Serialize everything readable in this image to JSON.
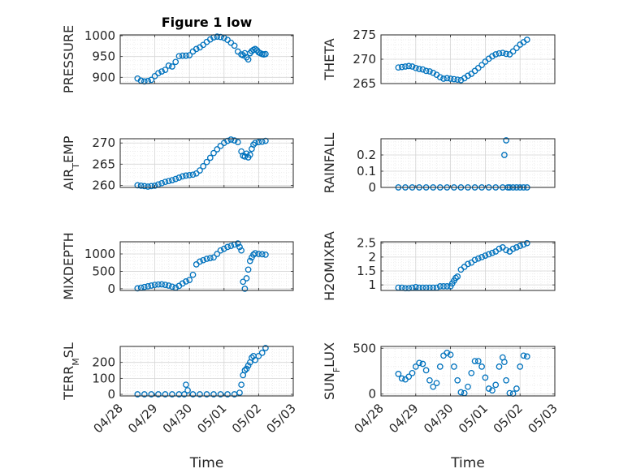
{
  "figure": {
    "title": "Figure 1 low",
    "marker_color": "#0072BD"
  },
  "chart_data": [
    {
      "type": "scatter",
      "title": "Figure 1 low",
      "ylabel": "PRESSURE",
      "xlabel": "",
      "ylim": [
        885,
        1002
      ],
      "yticks": [
        900,
        950,
        1000
      ],
      "ytick_labels": [
        "900",
        "950",
        "1000"
      ],
      "xlim": [
        "04/28",
        "05/03"
      ],
      "grid": true,
      "series": [
        {
          "x": [
            0.5,
            0.6,
            0.7,
            0.8,
            0.9,
            1.0,
            1.1,
            1.2,
            1.3,
            1.4,
            1.5,
            1.6,
            1.7,
            1.8,
            1.9,
            2.0,
            2.1,
            2.2,
            2.3,
            2.4,
            2.5,
            2.6,
            2.7,
            2.8,
            2.9,
            3.0,
            3.1,
            3.2,
            3.3,
            3.4,
            3.5,
            3.55,
            3.6,
            3.65,
            3.7,
            3.75,
            3.8,
            3.85,
            3.9,
            3.95,
            4.0,
            4.05,
            4.1,
            4.15,
            4.2
          ],
          "y": [
            897,
            892,
            890,
            891,
            894,
            903,
            910,
            914,
            918,
            928,
            926,
            937,
            951,
            952,
            952,
            953,
            962,
            968,
            972,
            978,
            985,
            991,
            996,
            998,
            997,
            995,
            990,
            983,
            976,
            962,
            955,
            953,
            958,
            948,
            943,
            958,
            963,
            966,
            968,
            965,
            960,
            958,
            956,
            955,
            956
          ]
        }
      ]
    },
    {
      "type": "scatter",
      "title": "",
      "ylabel": "THETA",
      "xlabel": "",
      "ylim": [
        265,
        275
      ],
      "yticks": [
        265,
        270,
        275
      ],
      "ytick_labels": [
        "265",
        "270",
        "275"
      ],
      "xlim": [
        "04/28",
        "05/03"
      ],
      "grid": true,
      "series": [
        {
          "x": [
            0.5,
            0.6,
            0.7,
            0.8,
            0.9,
            1.0,
            1.1,
            1.2,
            1.3,
            1.4,
            1.5,
            1.6,
            1.7,
            1.8,
            1.9,
            2.0,
            2.1,
            2.2,
            2.3,
            2.4,
            2.5,
            2.6,
            2.7,
            2.8,
            2.9,
            3.0,
            3.1,
            3.2,
            3.3,
            3.4,
            3.5,
            3.6,
            3.7,
            3.8,
            3.9,
            4.0,
            4.1,
            4.2
          ],
          "y": [
            268.3,
            268.4,
            268.5,
            268.6,
            268.5,
            268.2,
            268.0,
            267.9,
            267.6,
            267.5,
            267.2,
            266.8,
            266.3,
            266.0,
            266.1,
            266.0,
            265.9,
            265.8,
            265.7,
            266.1,
            266.6,
            267.0,
            267.6,
            268.2,
            268.8,
            269.5,
            270.1,
            270.6,
            271.0,
            271.2,
            271.3,
            271.1,
            271.0,
            271.6,
            272.3,
            273.0,
            273.5,
            274.0
          ]
        }
      ]
    },
    {
      "type": "scatter",
      "title": "",
      "ylabel": "AIR_TEMP",
      "ylabel_main": "AIR",
      "ylabel_sub": "T",
      "ylabel_rest": "EMP",
      "xlabel": "",
      "ylim": [
        259.5,
        271
      ],
      "yticks": [
        260,
        265,
        270
      ],
      "ytick_labels": [
        "260",
        "265",
        "270"
      ],
      "xlim": [
        "04/28",
        "05/03"
      ],
      "grid": true,
      "series": [
        {
          "x": [
            0.5,
            0.6,
            0.7,
            0.8,
            0.9,
            1.0,
            1.1,
            1.2,
            1.3,
            1.4,
            1.5,
            1.6,
            1.7,
            1.8,
            1.9,
            2.0,
            2.1,
            2.2,
            2.3,
            2.4,
            2.5,
            2.6,
            2.7,
            2.8,
            2.9,
            3.0,
            3.1,
            3.2,
            3.3,
            3.4,
            3.5,
            3.55,
            3.6,
            3.65,
            3.7,
            3.75,
            3.8,
            3.85,
            3.9,
            4.0,
            4.1,
            4.2
          ],
          "y": [
            260.0,
            259.9,
            259.8,
            259.7,
            259.8,
            259.9,
            260.2,
            260.5,
            260.8,
            261.0,
            261.2,
            261.5,
            261.8,
            262.1,
            262.3,
            262.4,
            262.5,
            262.8,
            263.5,
            264.5,
            265.5,
            266.5,
            267.6,
            268.5,
            269.3,
            270.0,
            270.5,
            270.8,
            270.6,
            270.2,
            268.0,
            267.0,
            266.8,
            267.5,
            266.6,
            267.2,
            268.6,
            269.6,
            270.0,
            270.2,
            270.3,
            270.5
          ]
        }
      ]
    },
    {
      "type": "scatter",
      "title": "",
      "ylabel": "RAINFALL",
      "xlabel": "",
      "ylim": [
        0,
        0.3
      ],
      "yticks": [
        0,
        0.1,
        0.2
      ],
      "ytick_labels": [
        "0",
        "0.1",
        "0.2"
      ],
      "xlim": [
        "04/28",
        "05/03"
      ],
      "grid": true,
      "series": [
        {
          "x": [
            0.5,
            0.7,
            0.9,
            1.1,
            1.3,
            1.5,
            1.7,
            1.9,
            2.1,
            2.3,
            2.5,
            2.7,
            2.9,
            3.1,
            3.3,
            3.5,
            3.55,
            3.6,
            3.65,
            3.7,
            3.8,
            3.9,
            4.0,
            4.1,
            4.2
          ],
          "y": [
            0,
            0,
            0,
            0,
            0,
            0,
            0,
            0,
            0,
            0,
            0,
            0,
            0,
            0,
            0,
            0,
            0.2,
            0.29,
            0.0,
            0,
            0,
            0,
            0,
            0,
            0
          ]
        }
      ]
    },
    {
      "type": "scatter",
      "title": "",
      "ylabel": "MIXDEPTH",
      "xlabel": "",
      "ylim": [
        -50,
        1350
      ],
      "yticks": [
        0,
        500,
        1000
      ],
      "ytick_labels": [
        "0",
        "500",
        "1000"
      ],
      "xlim": [
        "04/28",
        "05/03"
      ],
      "grid": true,
      "series": [
        {
          "x": [
            0.5,
            0.6,
            0.7,
            0.8,
            0.9,
            1.0,
            1.1,
            1.2,
            1.3,
            1.4,
            1.5,
            1.6,
            1.7,
            1.8,
            1.9,
            2.0,
            2.1,
            2.2,
            2.3,
            2.4,
            2.5,
            2.6,
            2.7,
            2.8,
            2.9,
            3.0,
            3.1,
            3.2,
            3.3,
            3.4,
            3.45,
            3.5,
            3.55,
            3.6,
            3.65,
            3.7,
            3.75,
            3.8,
            3.85,
            3.9,
            4.0,
            4.1,
            4.2
          ],
          "y": [
            10,
            30,
            50,
            70,
            90,
            110,
            120,
            125,
            110,
            90,
            60,
            30,
            80,
            150,
            210,
            250,
            400,
            700,
            780,
            820,
            860,
            880,
            900,
            1000,
            1100,
            1150,
            1200,
            1230,
            1270,
            1300,
            1200,
            1100,
            200,
            0,
            300,
            550,
            800,
            900,
            980,
            1020,
            1000,
            990,
            980
          ]
        }
      ]
    },
    {
      "type": "scatter",
      "title": "",
      "ylabel": "H2OMIXRA",
      "xlabel": "",
      "ylim": [
        0.8,
        2.55
      ],
      "yticks": [
        1,
        1.5,
        2,
        2.5
      ],
      "ytick_labels": [
        "1",
        "1.5",
        "2",
        "2.5"
      ],
      "xlim": [
        "04/28",
        "05/03"
      ],
      "grid": true,
      "series": [
        {
          "x": [
            0.5,
            0.6,
            0.7,
            0.8,
            0.9,
            1.0,
            1.1,
            1.2,
            1.3,
            1.4,
            1.5,
            1.6,
            1.7,
            1.8,
            1.9,
            2.0,
            2.05,
            2.1,
            2.15,
            2.2,
            2.3,
            2.4,
            2.5,
            2.6,
            2.7,
            2.8,
            2.9,
            3.0,
            3.1,
            3.2,
            3.3,
            3.4,
            3.5,
            3.6,
            3.7,
            3.8,
            3.9,
            4.0,
            4.1,
            4.2
          ],
          "y": [
            0.9,
            0.9,
            0.88,
            0.88,
            0.9,
            0.92,
            0.9,
            0.9,
            0.9,
            0.9,
            0.9,
            0.9,
            0.95,
            0.95,
            0.95,
            0.95,
            1.05,
            1.15,
            1.25,
            1.3,
            1.55,
            1.65,
            1.75,
            1.8,
            1.9,
            1.95,
            2.0,
            2.05,
            2.1,
            2.15,
            2.2,
            2.3,
            2.35,
            2.25,
            2.2,
            2.3,
            2.35,
            2.4,
            2.45,
            2.5
          ]
        }
      ]
    },
    {
      "type": "scatter",
      "title": "",
      "ylabel": "TERR_MSL",
      "ylabel_main": "TERR",
      "ylabel_sub": "M",
      "ylabel_rest": "SL",
      "xlabel": "Time",
      "ylim": [
        -10,
        300
      ],
      "yticks": [
        0,
        100,
        200
      ],
      "ytick_labels": [
        "0",
        "100",
        "200"
      ],
      "xlim": [
        "04/28",
        "05/03"
      ],
      "xtick_labels": [
        "04/28",
        "04/29",
        "04/30",
        "05/01",
        "05/02",
        "05/03"
      ],
      "grid": true,
      "series": [
        {
          "x": [
            0.5,
            0.7,
            0.9,
            1.1,
            1.3,
            1.5,
            1.7,
            1.85,
            1.9,
            1.95,
            2.1,
            2.3,
            2.5,
            2.7,
            2.9,
            3.1,
            3.3,
            3.45,
            3.5,
            3.55,
            3.6,
            3.65,
            3.7,
            3.75,
            3.8,
            3.85,
            3.9,
            4.0,
            4.1,
            4.2
          ],
          "y": [
            0,
            0,
            0,
            0,
            0,
            0,
            0,
            0,
            60,
            25,
            0,
            0,
            0,
            0,
            0,
            0,
            0,
            10,
            60,
            120,
            150,
            160,
            180,
            200,
            230,
            240,
            215,
            240,
            260,
            290
          ]
        }
      ]
    },
    {
      "type": "scatter",
      "title": "",
      "ylabel": "SUN_FLUX",
      "ylabel_main": "SUN",
      "ylabel_sub": "F",
      "ylabel_rest": "LUX",
      "xlabel": "Time",
      "ylim": [
        -20,
        520
      ],
      "yticks": [
        0,
        500
      ],
      "ytick_labels": [
        "0",
        "500"
      ],
      "xlim": [
        "04/28",
        "05/03"
      ],
      "xtick_labels": [
        "04/28",
        "04/29",
        "04/30",
        "05/01",
        "05/02",
        "05/03"
      ],
      "grid": true,
      "series": [
        {
          "x": [
            0.5,
            0.6,
            0.7,
            0.8,
            0.9,
            1.0,
            1.1,
            1.2,
            1.3,
            1.4,
            1.5,
            1.6,
            1.7,
            1.8,
            1.9,
            2.0,
            2.1,
            2.2,
            2.3,
            2.4,
            2.5,
            2.6,
            2.7,
            2.8,
            2.9,
            3.0,
            3.1,
            3.2,
            3.3,
            3.4,
            3.5,
            3.55,
            3.6,
            3.7,
            3.8,
            3.9,
            4.0,
            4.1,
            4.2
          ],
          "y": [
            220,
            170,
            160,
            190,
            230,
            300,
            340,
            330,
            260,
            150,
            80,
            120,
            300,
            420,
            450,
            430,
            300,
            150,
            20,
            10,
            80,
            230,
            360,
            360,
            300,
            180,
            60,
            40,
            100,
            300,
            400,
            350,
            150,
            10,
            5,
            60,
            300,
            420,
            410
          ]
        }
      ]
    }
  ]
}
